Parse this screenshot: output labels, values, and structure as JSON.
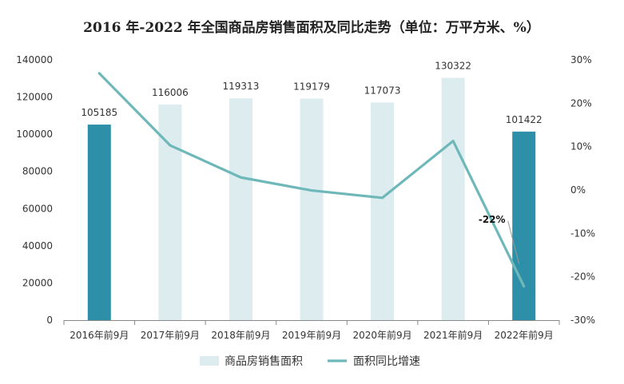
{
  "chart_data": {
    "type": "bar",
    "title": "2016 年-2022 年全国商品房销售面积及同比走势（单位：万平方米、%）",
    "categories": [
      "2016年前9月",
      "2017年前9月",
      "2018年前9月",
      "2019年前9月",
      "2020年前9月",
      "2021年前9月",
      "2022年前9月"
    ],
    "y_left": {
      "min": 0,
      "max": 140000,
      "step": 20000,
      "ticks": [
        "0",
        "20000",
        "40000",
        "60000",
        "80000",
        "100000",
        "120000",
        "140000"
      ]
    },
    "y_right": {
      "min": -30,
      "max": 30,
      "step": 10,
      "ticks": [
        "-30%",
        "-20%",
        "-10%",
        "0%",
        "10%",
        "20%",
        "30%"
      ]
    },
    "grid": false,
    "legend_position": "bottom",
    "series": [
      {
        "name": "商品房销售面积",
        "type": "bar",
        "axis": "left",
        "values": [
          105185,
          116006,
          119313,
          119179,
          117073,
          130322,
          101422
        ],
        "labels": [
          "105185",
          "116006",
          "119313",
          "119179",
          "117073",
          "130322",
          "101422"
        ],
        "color": "#dcecef",
        "highlight_color": "#2e8fa8",
        "highlight_indices": [
          0,
          6
        ]
      },
      {
        "name": "面积同比增速",
        "type": "line",
        "axis": "right",
        "values": [
          26.9,
          10.3,
          2.9,
          -0.1,
          -1.8,
          11.3,
          -22.2
        ],
        "color": "#6fb8b9"
      }
    ],
    "annotations": [
      {
        "text": "-22%",
        "series": 1,
        "index": 6
      }
    ]
  }
}
